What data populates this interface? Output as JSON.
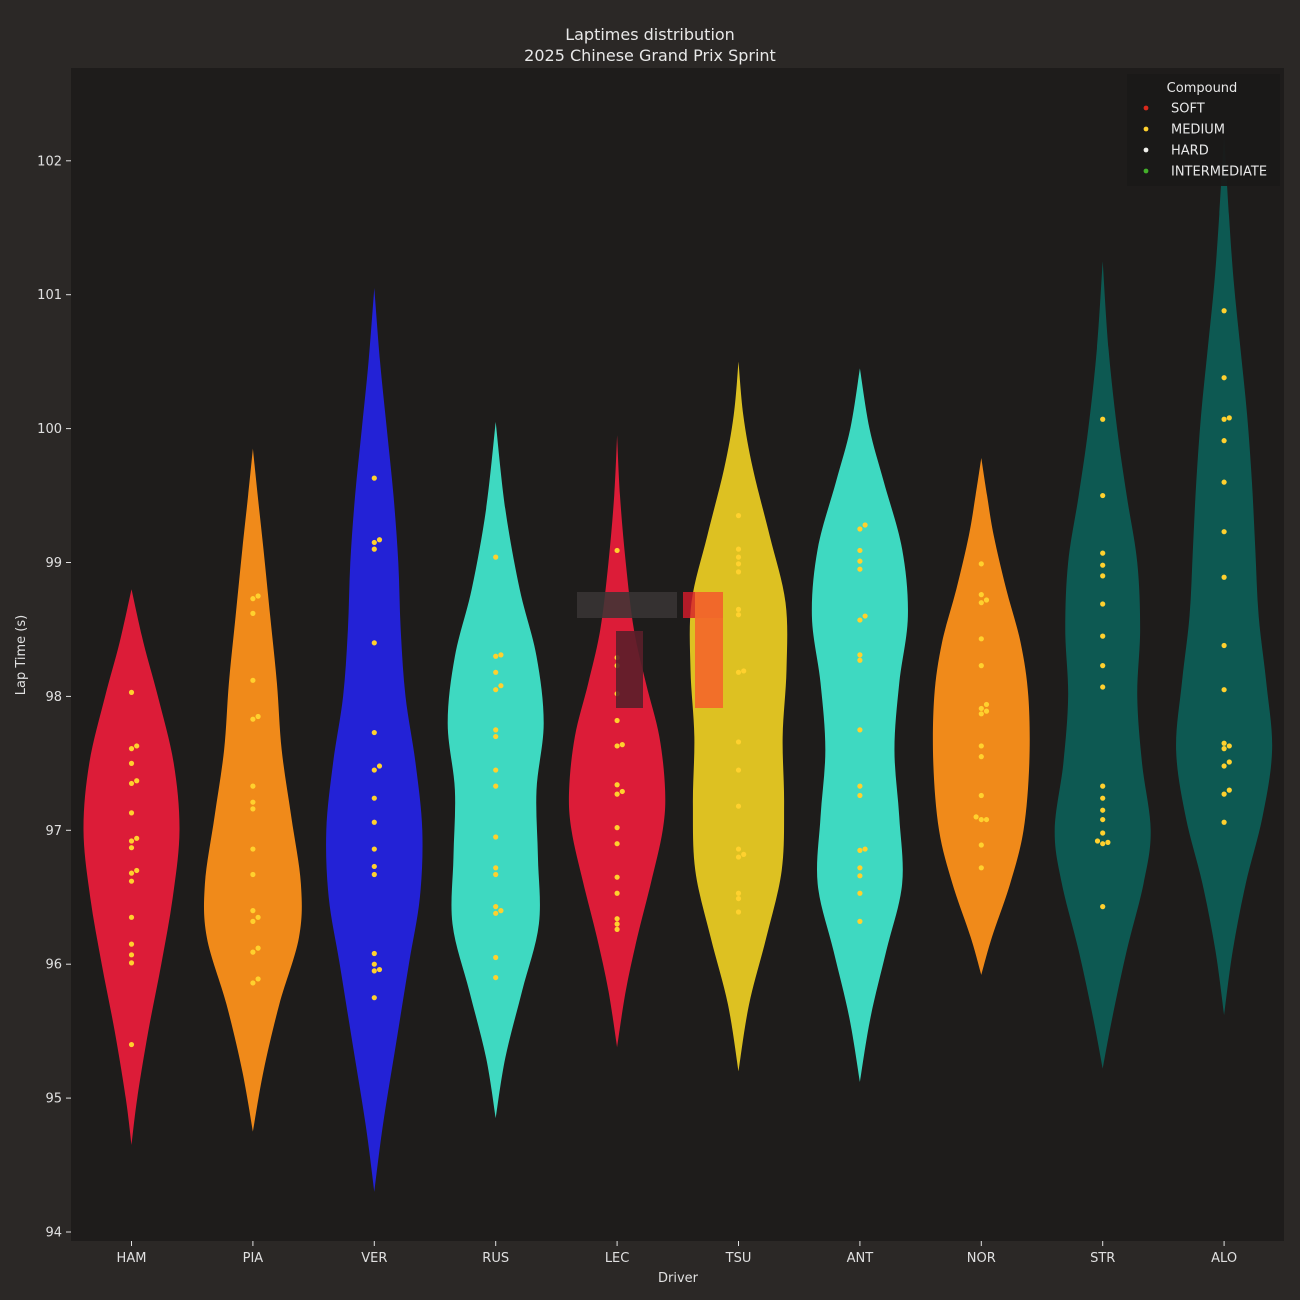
{
  "chart_data": {
    "type": "violin",
    "title": "Laptimes distribution",
    "subtitle": "2025 Chinese Grand Prix Sprint",
    "xlabel": "Driver",
    "ylabel": "Lap Time (s)",
    "ylim": [
      93.8,
      102.7
    ],
    "yticks": [
      94,
      95,
      96,
      97,
      98,
      99,
      100,
      101,
      102
    ],
    "legend": {
      "title": "Compound",
      "position": "top-right",
      "entries": [
        {
          "label": "SOFT",
          "color": "#da291c"
        },
        {
          "label": "MEDIUM",
          "color": "#ffd12e"
        },
        {
          "label": "HARD",
          "color": "#f0f0ec"
        },
        {
          "label": "INTERMEDIATE",
          "color": "#43b02a"
        }
      ]
    },
    "point_color": "#ffd12e",
    "categories": [
      "HAM",
      "PIA",
      "VER",
      "RUS",
      "LEC",
      "TSU",
      "ANT",
      "NOR",
      "STR",
      "ALO"
    ],
    "series": [
      {
        "name": "HAM",
        "color": "#dc1c38",
        "range": [
          94.65,
          98.8
        ],
        "max_half_width": 48,
        "points": [
          98.03,
          97.63,
          97.61,
          97.5,
          97.37,
          97.35,
          97.13,
          96.94,
          96.92,
          96.87,
          96.7,
          96.68,
          96.62,
          96.35,
          96.15,
          96.07,
          96.01,
          95.4
        ],
        "profile": [
          [
            94.65,
            0.0
          ],
          [
            95.0,
            0.12
          ],
          [
            95.5,
            0.35
          ],
          [
            96.0,
            0.62
          ],
          [
            96.5,
            0.86
          ],
          [
            97.0,
            1.0
          ],
          [
            97.5,
            0.88
          ],
          [
            98.0,
            0.55
          ],
          [
            98.4,
            0.25
          ],
          [
            98.8,
            0.0
          ]
        ]
      },
      {
        "name": "PIA",
        "color": "#f08a1a",
        "range": [
          94.75,
          99.85
        ],
        "max_half_width": 48,
        "points": [
          98.75,
          98.73,
          98.62,
          98.12,
          97.85,
          97.83,
          97.33,
          97.21,
          97.16,
          96.86,
          96.67,
          96.4,
          96.35,
          96.32,
          96.12,
          96.09,
          95.89,
          95.86
        ],
        "profile": [
          [
            94.75,
            0.0
          ],
          [
            95.2,
            0.22
          ],
          [
            95.7,
            0.55
          ],
          [
            96.2,
            0.96
          ],
          [
            96.6,
            1.0
          ],
          [
            97.1,
            0.8
          ],
          [
            97.6,
            0.6
          ],
          [
            98.1,
            0.5
          ],
          [
            98.6,
            0.36
          ],
          [
            99.1,
            0.22
          ],
          [
            99.5,
            0.1
          ],
          [
            99.85,
            0.0
          ]
        ]
      },
      {
        "name": "VER",
        "color": "#2322d6",
        "range": [
          94.3,
          101.05
        ],
        "max_half_width": 48,
        "points": [
          99.63,
          99.17,
          99.15,
          99.1,
          98.4,
          97.73,
          97.48,
          97.45,
          97.24,
          97.06,
          96.86,
          96.73,
          96.67,
          96.08,
          96.0,
          95.96,
          95.95,
          95.75
        ],
        "profile": [
          [
            94.3,
            0.0
          ],
          [
            94.8,
            0.18
          ],
          [
            95.4,
            0.45
          ],
          [
            96.0,
            0.72
          ],
          [
            96.5,
            0.95
          ],
          [
            97.0,
            1.0
          ],
          [
            97.5,
            0.86
          ],
          [
            98.0,
            0.65
          ],
          [
            98.5,
            0.55
          ],
          [
            99.0,
            0.5
          ],
          [
            99.5,
            0.4
          ],
          [
            100.0,
            0.26
          ],
          [
            100.5,
            0.12
          ],
          [
            101.05,
            0.0
          ]
        ]
      },
      {
        "name": "RUS",
        "color": "#3ed9c1",
        "range": [
          94.85,
          100.05
        ],
        "max_half_width": 48,
        "points": [
          99.04,
          98.31,
          98.3,
          98.18,
          98.08,
          98.05,
          97.75,
          97.7,
          97.45,
          97.33,
          96.95,
          96.72,
          96.67,
          96.43,
          96.4,
          96.38,
          96.05,
          95.9
        ],
        "profile": [
          [
            94.85,
            0.0
          ],
          [
            95.3,
            0.2
          ],
          [
            95.8,
            0.55
          ],
          [
            96.3,
            0.9
          ],
          [
            96.8,
            0.88
          ],
          [
            97.3,
            0.85
          ],
          [
            97.8,
            1.0
          ],
          [
            98.3,
            0.85
          ],
          [
            98.8,
            0.5
          ],
          [
            99.4,
            0.2
          ],
          [
            100.05,
            0.0
          ]
        ]
      },
      {
        "name": "LEC",
        "color": "#dc1c38",
        "range": [
          95.38,
          99.95
        ],
        "max_half_width": 48,
        "points": [
          99.09,
          98.29,
          98.23,
          98.02,
          97.82,
          97.64,
          97.63,
          97.34,
          97.29,
          97.27,
          97.02,
          96.9,
          96.65,
          96.53,
          96.34,
          96.3,
          96.26
        ],
        "profile": [
          [
            95.38,
            0.0
          ],
          [
            95.8,
            0.18
          ],
          [
            96.2,
            0.42
          ],
          [
            96.6,
            0.7
          ],
          [
            97.0,
            0.95
          ],
          [
            97.3,
            1.0
          ],
          [
            97.7,
            0.88
          ],
          [
            98.1,
            0.6
          ],
          [
            98.5,
            0.35
          ],
          [
            99.0,
            0.18
          ],
          [
            99.5,
            0.06
          ],
          [
            99.95,
            0.0
          ]
        ]
      },
      {
        "name": "TSU",
        "color": "#ddc122",
        "range": [
          95.2,
          100.5
        ],
        "max_half_width": 48,
        "points": [
          99.35,
          99.1,
          99.04,
          98.99,
          98.93,
          98.65,
          98.61,
          98.19,
          98.18,
          97.66,
          97.45,
          97.18,
          96.86,
          96.82,
          96.8,
          96.53,
          96.49,
          96.39
        ],
        "profile": [
          [
            95.2,
            0.0
          ],
          [
            95.7,
            0.22
          ],
          [
            96.2,
            0.58
          ],
          [
            96.7,
            0.9
          ],
          [
            97.2,
            0.95
          ],
          [
            97.7,
            0.92
          ],
          [
            98.2,
            1.0
          ],
          [
            98.7,
            0.98
          ],
          [
            99.2,
            0.65
          ],
          [
            99.7,
            0.3
          ],
          [
            100.1,
            0.1
          ],
          [
            100.5,
            0.0
          ]
        ]
      },
      {
        "name": "ANT",
        "color": "#3ed9c1",
        "range": [
          95.12,
          100.45
        ],
        "max_half_width": 48,
        "points": [
          99.28,
          99.25,
          99.09,
          99.01,
          98.95,
          98.6,
          98.57,
          98.31,
          98.27,
          97.75,
          97.33,
          97.26,
          96.86,
          96.85,
          96.72,
          96.66,
          96.53,
          96.32
        ],
        "profile": [
          [
            95.12,
            0.0
          ],
          [
            95.6,
            0.22
          ],
          [
            96.1,
            0.55
          ],
          [
            96.6,
            0.88
          ],
          [
            97.1,
            0.82
          ],
          [
            97.6,
            0.72
          ],
          [
            98.1,
            0.82
          ],
          [
            98.6,
            1.0
          ],
          [
            99.1,
            0.88
          ],
          [
            99.6,
            0.5
          ],
          [
            100.0,
            0.2
          ],
          [
            100.45,
            0.0
          ]
        ]
      },
      {
        "name": "NOR",
        "color": "#f08a1a",
        "range": [
          95.92,
          99.78
        ],
        "max_half_width": 48,
        "points": [
          98.99,
          98.76,
          98.72,
          98.7,
          98.43,
          98.23,
          97.94,
          97.91,
          97.89,
          97.87,
          97.63,
          97.55,
          97.26,
          97.1,
          97.08,
          97.08,
          96.89,
          96.72
        ],
        "profile": [
          [
            95.92,
            0.0
          ],
          [
            96.2,
            0.22
          ],
          [
            96.6,
            0.6
          ],
          [
            97.0,
            0.88
          ],
          [
            97.5,
            1.0
          ],
          [
            98.0,
            0.98
          ],
          [
            98.4,
            0.82
          ],
          [
            98.8,
            0.52
          ],
          [
            99.2,
            0.26
          ],
          [
            99.5,
            0.12
          ],
          [
            99.78,
            0.0
          ]
        ]
      },
      {
        "name": "STR",
        "color": "#0d5952",
        "range": [
          95.22,
          101.25
        ],
        "max_half_width": 48,
        "points": [
          100.07,
          99.5,
          99.07,
          98.98,
          98.9,
          98.69,
          98.45,
          98.23,
          98.07,
          97.33,
          97.24,
          97.15,
          97.08,
          96.98,
          96.92,
          96.91,
          96.9,
          96.43
        ],
        "profile": [
          [
            95.22,
            0.0
          ],
          [
            95.6,
            0.2
          ],
          [
            96.1,
            0.5
          ],
          [
            96.6,
            0.85
          ],
          [
            97.0,
            1.0
          ],
          [
            97.5,
            0.82
          ],
          [
            98.0,
            0.72
          ],
          [
            98.5,
            0.78
          ],
          [
            99.0,
            0.72
          ],
          [
            99.5,
            0.5
          ],
          [
            100.0,
            0.3
          ],
          [
            100.6,
            0.12
          ],
          [
            101.25,
            0.0
          ]
        ]
      },
      {
        "name": "ALO",
        "color": "#0d5952",
        "range": [
          95.62,
          102.2
        ],
        "max_half_width": 48,
        "points": [
          100.88,
          100.38,
          100.08,
          100.07,
          99.91,
          99.6,
          99.23,
          98.89,
          98.38,
          98.05,
          97.65,
          97.63,
          97.61,
          97.51,
          97.48,
          97.3,
          97.27,
          97.06
        ],
        "profile": [
          [
            95.62,
            0.0
          ],
          [
            96.1,
            0.18
          ],
          [
            96.6,
            0.45
          ],
          [
            97.1,
            0.8
          ],
          [
            97.6,
            1.0
          ],
          [
            98.1,
            0.88
          ],
          [
            98.6,
            0.72
          ],
          [
            99.1,
            0.65
          ],
          [
            99.6,
            0.58
          ],
          [
            100.1,
            0.48
          ],
          [
            100.6,
            0.34
          ],
          [
            101.1,
            0.2
          ],
          [
            101.6,
            0.1
          ],
          [
            102.2,
            0.0
          ]
        ]
      }
    ]
  }
}
